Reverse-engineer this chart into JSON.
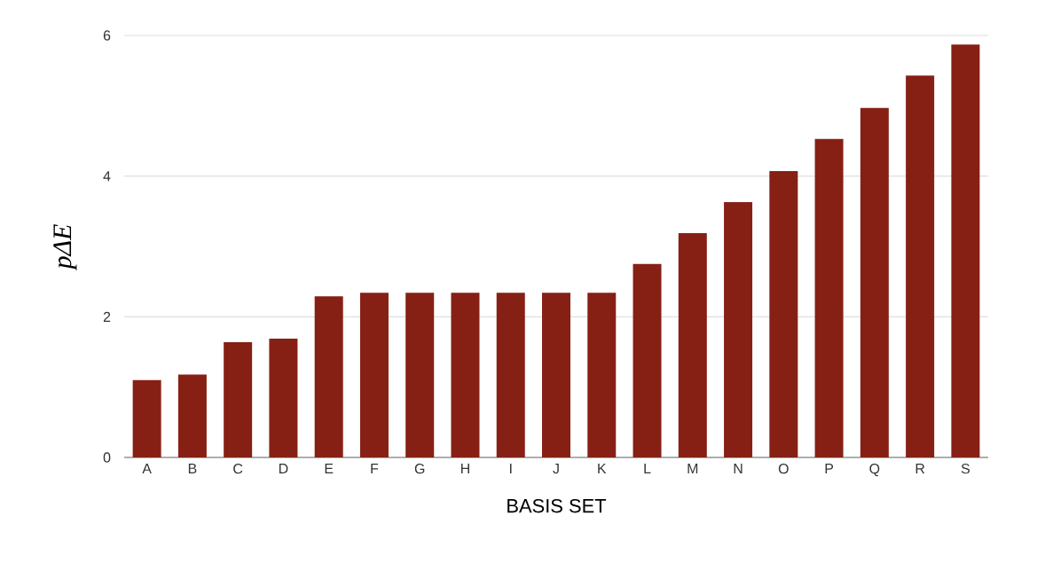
{
  "chart_data": {
    "type": "bar",
    "xlabel": "BASIS SET",
    "ylabel": "pΔE",
    "categories": [
      "A",
      "B",
      "C",
      "D",
      "E",
      "F",
      "G",
      "H",
      "I",
      "J",
      "K",
      "L",
      "M",
      "N",
      "O",
      "P",
      "Q",
      "R",
      "S"
    ],
    "values": [
      1.1,
      1.18,
      1.64,
      1.69,
      2.29,
      2.34,
      2.34,
      2.34,
      2.34,
      2.34,
      2.34,
      2.75,
      3.19,
      3.63,
      4.07,
      4.53,
      4.97,
      5.43,
      5.87
    ],
    "color": "#862014",
    "ylim": [
      0,
      6
    ],
    "yticks": [
      0,
      2,
      4,
      6
    ],
    "grid": "y"
  }
}
